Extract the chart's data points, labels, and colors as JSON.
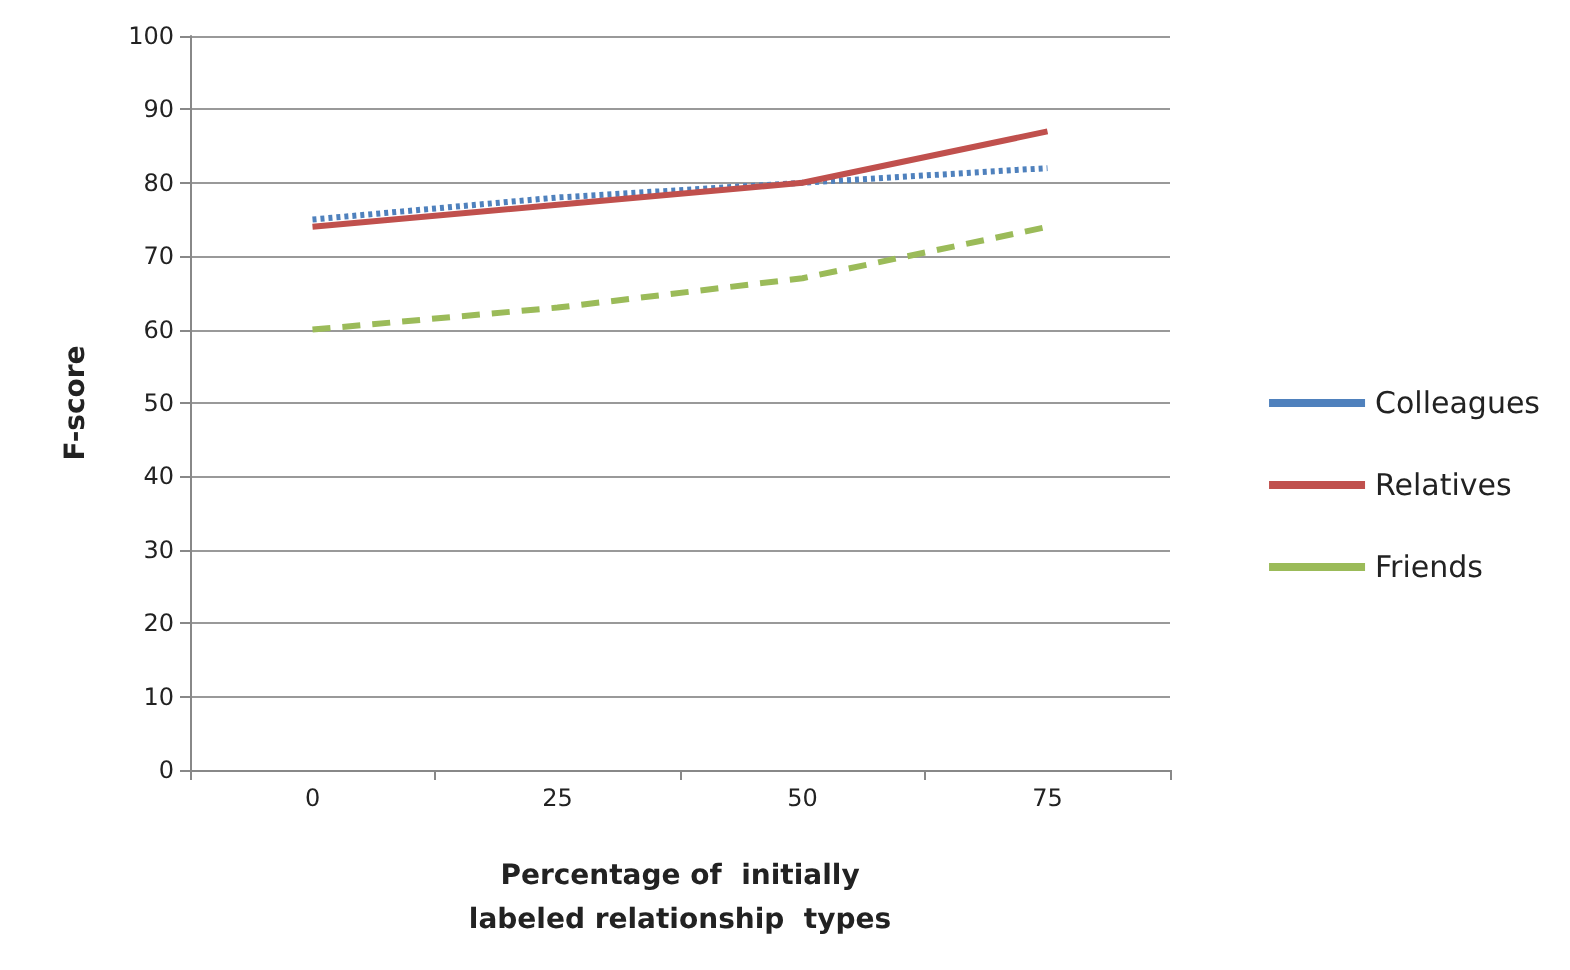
{
  "chart_data": {
    "type": "line",
    "xlabel": "Percentage of  initially\nlabeled relationship  types",
    "ylabel": "F-score",
    "categories": [
      "0",
      "25",
      "50",
      "75"
    ],
    "series": [
      {
        "name": "Colleagues",
        "color": "#4f81bd",
        "line_style": "dotted",
        "values": [
          75,
          78,
          80,
          82
        ]
      },
      {
        "name": "Relatives",
        "color": "#c0504d",
        "line_style": "solid",
        "values": [
          74,
          77,
          80,
          87
        ]
      },
      {
        "name": "Friends",
        "color": "#9bbb59",
        "line_style": "dashed",
        "values": [
          60,
          63,
          67,
          74
        ]
      }
    ],
    "ylim": [
      0,
      100
    ],
    "yticks": [
      0,
      10,
      20,
      30,
      40,
      50,
      60,
      70,
      80,
      90,
      100
    ],
    "grid": "y",
    "legend": "right",
    "marker": "none"
  }
}
